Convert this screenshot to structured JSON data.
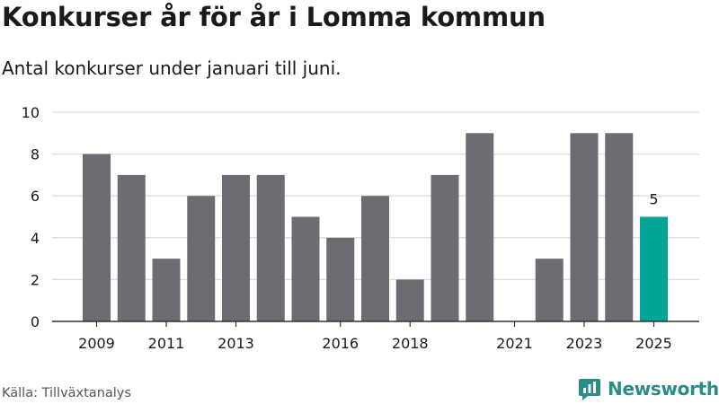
{
  "chart_data": {
    "type": "bar",
    "title": "Konkurser år för år i Lomma kommun",
    "subtitle": "Antal konkurser under januari till juni.",
    "categories": [
      "2009",
      "2010",
      "2011",
      "2012",
      "2013",
      "2014",
      "2015",
      "2016",
      "2017",
      "2018",
      "2019",
      "2020",
      "2021",
      "2022",
      "2023",
      "2024",
      "2025"
    ],
    "values": [
      8,
      7,
      3,
      6,
      7,
      7,
      5,
      4,
      6,
      2,
      7,
      9,
      0,
      3,
      9,
      9,
      5
    ],
    "xtick_labels": [
      "2009",
      "2011",
      "2013",
      "2016",
      "2018",
      "2021",
      "2023",
      "2025"
    ],
    "ylim": [
      0,
      10
    ],
    "yticks": [
      0,
      2,
      4,
      6,
      8,
      10
    ],
    "grid": true,
    "highlight": {
      "category": "2025",
      "label": "5"
    },
    "colors": {
      "bar": "#6d6c72",
      "highlight": "#00a598",
      "grid": "#dddddd",
      "axis": "#333333"
    }
  },
  "footer": {
    "source": "Källa: Tillväxtanalys",
    "brand": "Newsworthy",
    "brand_icon": "newsworthy-logo-icon",
    "brand_color": "#2a8c86"
  }
}
